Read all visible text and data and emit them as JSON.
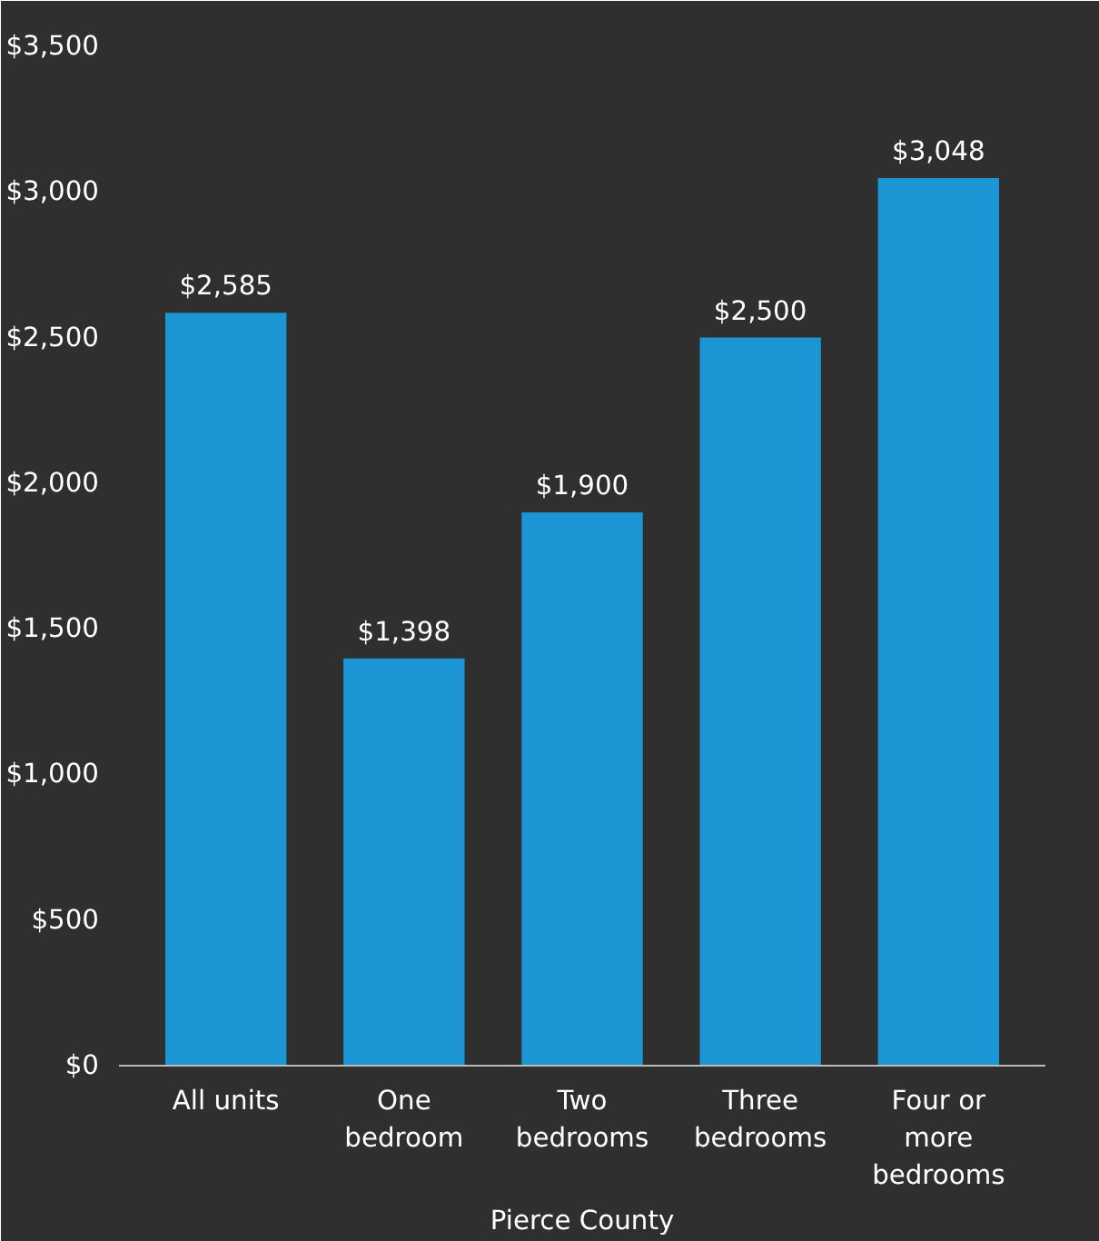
{
  "chart_data": {
    "type": "bar",
    "xlabel": "Pierce County",
    "categories": [
      "All units",
      "One\nbedroom",
      "Two\nbedrooms",
      "Three\nbedrooms",
      "Four or\nmore\nbedrooms"
    ],
    "values": [
      2585,
      1398,
      1900,
      2500,
      3048
    ],
    "color": "#1b95d3",
    "value_labels": [
      "$2,585",
      "$1,398",
      "$1,900",
      "$2,500",
      "$3,048"
    ],
    "ylim": [
      0,
      3500
    ],
    "yticks": [
      {
        "value": 0,
        "label": "$0"
      },
      {
        "value": 500,
        "label": "$500"
      },
      {
        "value": 1000,
        "label": "$1,000"
      },
      {
        "value": 1500,
        "label": "$1,500"
      },
      {
        "value": 2000,
        "label": "$2,000"
      },
      {
        "value": 2500,
        "label": "$2,500"
      },
      {
        "value": 3000,
        "label": "$3,000"
      },
      {
        "value": 3500,
        "label": "$3,500"
      }
    ],
    "grid": false
  }
}
